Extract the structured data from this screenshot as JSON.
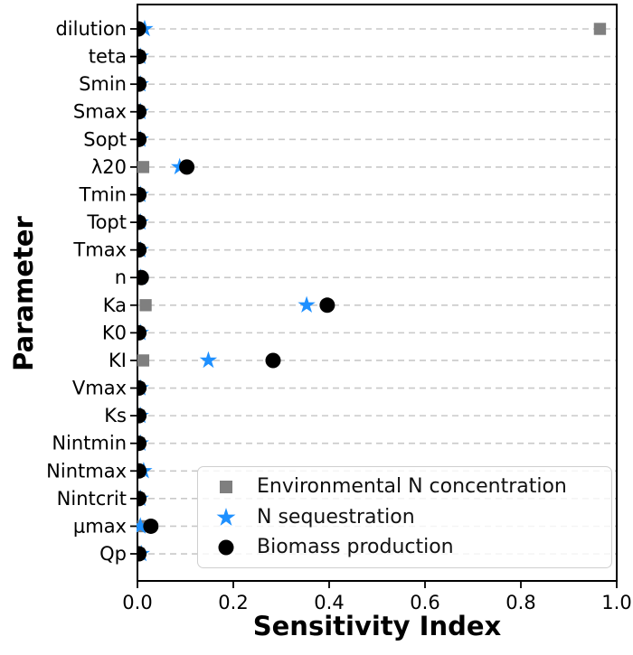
{
  "chart_data": {
    "type": "scatter",
    "title": "",
    "xlabel": "Sensitivity Index",
    "ylabel": "Parameter",
    "xlim": [
      0.0,
      1.0
    ],
    "x_ticks": [
      0.0,
      0.2,
      0.4,
      0.6,
      0.8,
      1.0
    ],
    "x_tick_labels": [
      "0.0",
      "0.2",
      "0.4",
      "0.6",
      "0.8",
      "1.0"
    ],
    "grid": "horizontal dashed gridlines, light gray",
    "legend_position": "lower right inside axes",
    "categories": [
      "dilution",
      "teta",
      "Smin",
      "Smax",
      "Sopt",
      "λ20",
      "Tmin",
      "Topt",
      "Tmax",
      "n",
      "Ka",
      "K0",
      "KI",
      "Vmax",
      "Ks",
      "Nintmin",
      "Nintmax",
      "Nintcrit",
      "μmax",
      "Qp"
    ],
    "series": [
      {
        "name": "Environmental N concentration",
        "marker": "square",
        "color": "#7f7f7f",
        "values": [
          0.965,
          0.003,
          0.003,
          0.003,
          0.003,
          0.012,
          0.003,
          0.003,
          0.003,
          0.003,
          0.017,
          0.003,
          0.012,
          0.003,
          0.003,
          0.003,
          0.003,
          0.003,
          0.012,
          0.003
        ]
      },
      {
        "name": "N sequestration",
        "marker": "star",
        "color": "#1e90ff",
        "values": [
          0.015,
          0.006,
          0.006,
          0.006,
          0.006,
          0.088,
          0.006,
          0.006,
          0.006,
          0.006,
          0.353,
          0.006,
          0.148,
          0.006,
          0.006,
          0.006,
          0.013,
          0.006,
          0.006,
          0.008
        ]
      },
      {
        "name": "Biomass production",
        "marker": "circle",
        "color": "#000000",
        "values": [
          0.002,
          0.003,
          0.003,
          0.003,
          0.003,
          0.103,
          0.003,
          0.003,
          0.003,
          0.008,
          0.396,
          0.003,
          0.283,
          0.003,
          0.003,
          0.003,
          0.003,
          0.003,
          0.028,
          0.003
        ]
      }
    ],
    "axis_color": "#000000",
    "gridline_color": "#c9c9c9",
    "text_color": "#000000"
  }
}
